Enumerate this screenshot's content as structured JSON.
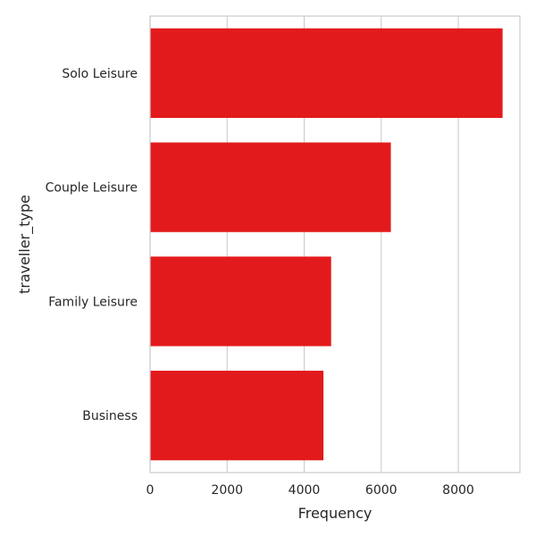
{
  "chart_data": {
    "type": "bar",
    "orientation": "horizontal",
    "categories": [
      "Solo Leisure",
      "Couple Leisure",
      "Family Leisure",
      "Business"
    ],
    "values": [
      9150,
      6250,
      4700,
      4500
    ],
    "xlabel": "Frequency",
    "ylabel": "traveller_type",
    "xlim": [
      0,
      9600
    ],
    "xticks": [
      0,
      2000,
      4000,
      6000,
      8000
    ],
    "grid": true,
    "bar_color": "#e31a1c",
    "grid_color": "#cccccc",
    "frame_color": "#cccccc"
  }
}
